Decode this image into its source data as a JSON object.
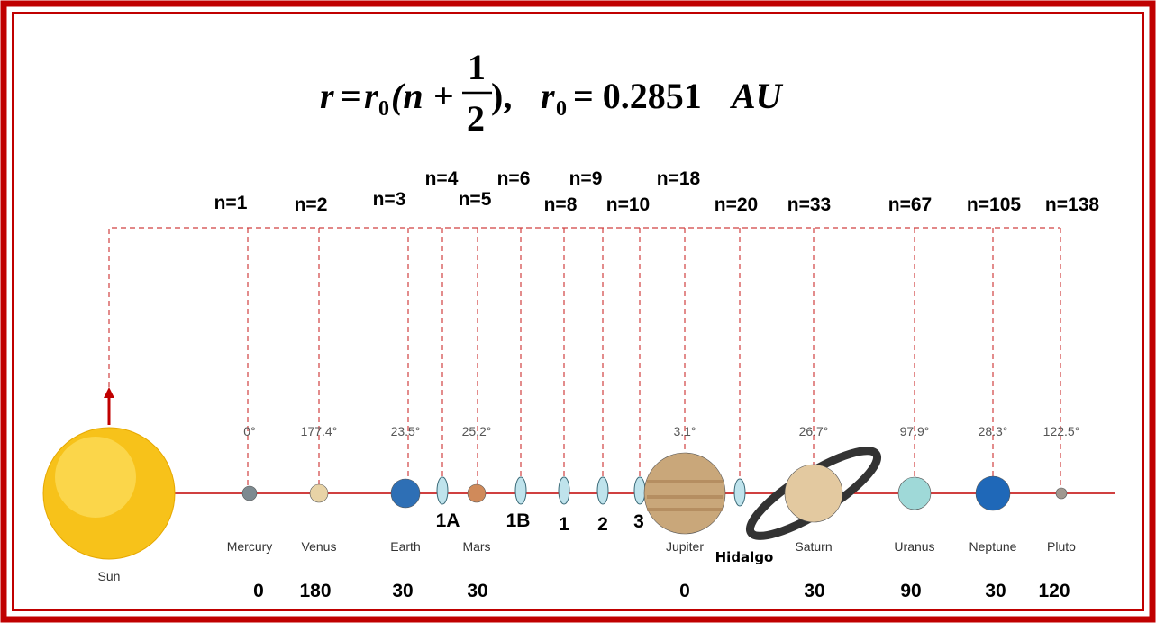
{
  "formula": {
    "lhs": "r",
    "equals": "=",
    "r0": "r",
    "r0_sub": "0",
    "open": "(n",
    "plus": "+",
    "numerator": "1",
    "denominator": "2",
    "close": "),",
    "r0_again": "r",
    "r0_again_sub": "0",
    "value": "= 0.2851",
    "unit": "AU"
  },
  "n_labels": [
    "n=1",
    "n=2",
    "n=3",
    "n=4",
    "n=5",
    "n=6",
    "n=8",
    "n=9",
    "n=10",
    "n=18",
    "n=20",
    "n=33",
    "n=67",
    "n=105",
    "n=138"
  ],
  "sun": "Sun",
  "planets": [
    {
      "name": "Mercury",
      "tilt": "0°",
      "angle": 0
    },
    {
      "name": "Venus",
      "tilt": "177.4°",
      "angle": 180
    },
    {
      "name": "Earth",
      "tilt": "23.5°",
      "angle": 30
    },
    {
      "name": "Mars",
      "tilt": "25.2°",
      "angle": 30
    },
    {
      "name": "Jupiter",
      "tilt": "3.1°",
      "angle": 0
    },
    {
      "name": "Saturn",
      "tilt": "26.7°",
      "angle": 30
    },
    {
      "name": "Uranus",
      "tilt": "97.9°",
      "angle": 90
    },
    {
      "name": "Neptune",
      "tilt": "28.3°",
      "angle": 30
    },
    {
      "name": "Pluto",
      "tilt": "122.5°",
      "angle": 120
    }
  ],
  "gaps": [
    "1A",
    "1B",
    "1",
    "2",
    "3"
  ],
  "hidalgo": "Hidalgo"
}
